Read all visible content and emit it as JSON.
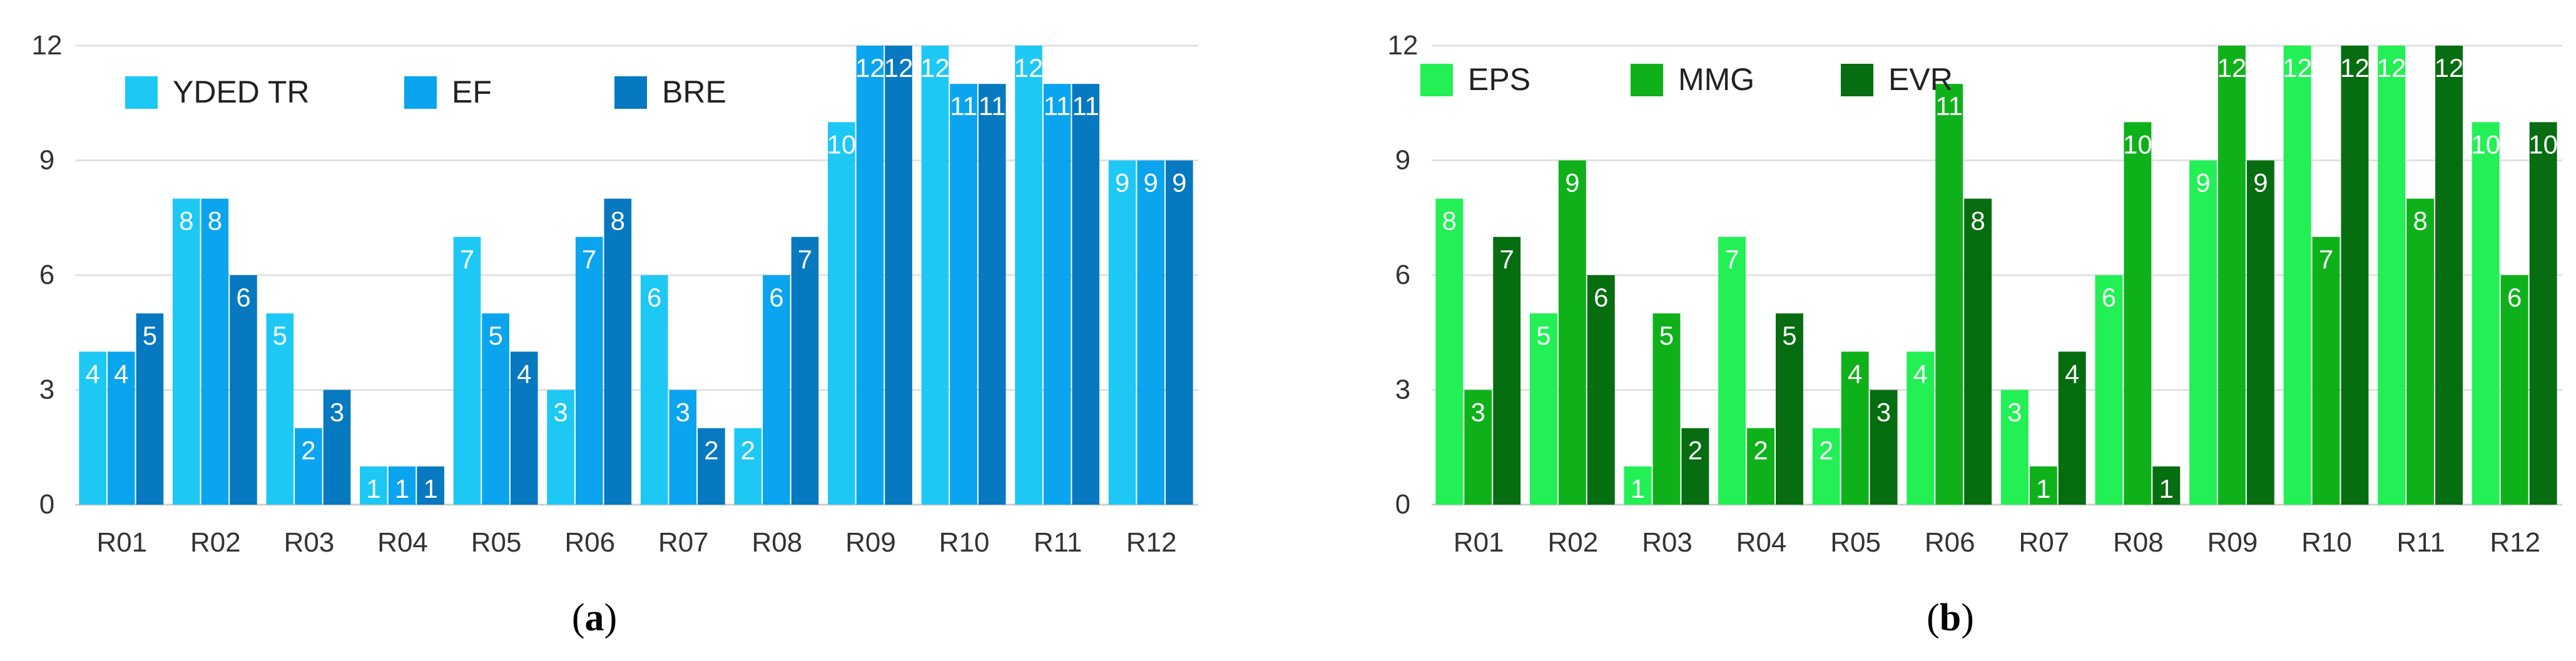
{
  "figure": {
    "panels": [
      {
        "caption_open": "(",
        "caption_letter": "a",
        "caption_close": ")",
        "chart_index": 0
      },
      {
        "caption_open": "(",
        "caption_letter": "b",
        "caption_close": ")",
        "chart_index": 1
      }
    ]
  },
  "chart_data": [
    {
      "type": "bar",
      "title": "",
      "xlabel": "",
      "ylabel": "",
      "ylim": [
        0,
        12
      ],
      "yticks": [
        "0",
        "3",
        "6",
        "9",
        "12"
      ],
      "grid": "horizontal",
      "legend": "top-left",
      "data_labels": true,
      "categories": [
        "R01",
        "R02",
        "R03",
        "R04",
        "R05",
        "R06",
        "R07",
        "R08",
        "R09",
        "R10",
        "R11",
        "R12"
      ],
      "series": [
        {
          "name": "YDED TR",
          "color": "#1ec8f5",
          "values": [
            4,
            8,
            5,
            1,
            7,
            3,
            6,
            2,
            10,
            12,
            12,
            9
          ]
        },
        {
          "name": "EF",
          "color": "#0aa5ee",
          "values": [
            4,
            8,
            2,
            1,
            5,
            7,
            3,
            6,
            12,
            11,
            11,
            9
          ]
        },
        {
          "name": "BRE",
          "color": "#0679c0",
          "values": [
            5,
            6,
            3,
            1,
            4,
            8,
            2,
            7,
            12,
            11,
            11,
            9
          ]
        }
      ]
    },
    {
      "type": "bar",
      "title": "",
      "xlabel": "",
      "ylabel": "",
      "ylim": [
        0,
        12
      ],
      "yticks": [
        "0",
        "3",
        "6",
        "9",
        "12"
      ],
      "grid": "horizontal",
      "legend": "top-left",
      "data_labels": true,
      "categories": [
        "R01",
        "R02",
        "R03",
        "R04",
        "R05",
        "R06",
        "R07",
        "R08",
        "R09",
        "R10",
        "R11",
        "R12"
      ],
      "series": [
        {
          "name": "EPS",
          "color": "#22f055",
          "values": [
            8,
            5,
            1,
            7,
            2,
            4,
            3,
            6,
            9,
            12,
            12,
            10
          ]
        },
        {
          "name": "MMG",
          "color": "#0fb11b",
          "values": [
            3,
            9,
            5,
            2,
            4,
            11,
            1,
            10,
            12,
            7,
            8,
            6
          ]
        },
        {
          "name": "EVR",
          "color": "#066d10",
          "values": [
            7,
            6,
            2,
            5,
            3,
            8,
            4,
            1,
            9,
            12,
            12,
            10
          ]
        }
      ]
    }
  ]
}
